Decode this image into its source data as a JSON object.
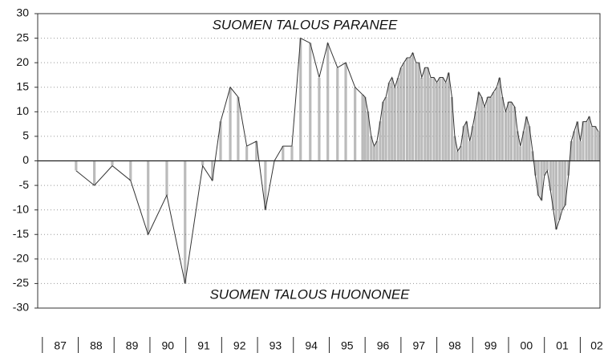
{
  "chart_data": {
    "type": "line",
    "annotations": [
      "SUOMEN TALOUS PARANEE",
      "SUOMEN TALOUS HUONONEE"
    ],
    "categories": [
      "87",
      "88",
      "89",
      "90",
      "91",
      "92",
      "93",
      "94",
      "95",
      "96",
      "97",
      "98",
      "99",
      "00",
      "01",
      "02"
    ],
    "xlim": [
      86.87,
      102.55
    ],
    "ylim": [
      -30,
      30
    ],
    "yticks": [
      30,
      25,
      20,
      15,
      10,
      5,
      0,
      -5,
      -10,
      -15,
      -20,
      -25,
      -30
    ],
    "grid": true,
    "series": [
      {
        "color": "#333333",
        "x": [
          87.94,
          88.45,
          88.95,
          89.46,
          89.95,
          90.47,
          90.98,
          91.47,
          91.74,
          91.97,
          92.24,
          92.46,
          92.7,
          92.97,
          93.22,
          93.47,
          93.71,
          93.96,
          94.2,
          94.47,
          94.72,
          94.96,
          95.23,
          95.46,
          95.72,
          95.93,
          96,
          96.08,
          96.17,
          96.25,
          96.33,
          96.42,
          96.5,
          96.58,
          96.67,
          96.75,
          96.83,
          96.92,
          97,
          97.08,
          97.17,
          97.25,
          97.33,
          97.42,
          97.5,
          97.58,
          97.67,
          97.75,
          97.83,
          97.92,
          98,
          98.08,
          98.17,
          98.25,
          98.33,
          98.42,
          98.5,
          98.58,
          98.67,
          98.75,
          98.83,
          98.92,
          99,
          99.08,
          99.17,
          99.25,
          99.33,
          99.42,
          99.5,
          99.58,
          99.67,
          99.75,
          99.83,
          99.92,
          100,
          100.08,
          100.17,
          100.25,
          100.33,
          100.42,
          100.5,
          100.58,
          100.67,
          100.75,
          100.83,
          100.92,
          101,
          101.08,
          101.17,
          101.25,
          101.33,
          101.42,
          101.5,
          101.58,
          101.67,
          101.75,
          101.83,
          101.92,
          102,
          102.08,
          102.17,
          102.25,
          102.33,
          102.42,
          102.5
        ],
        "values": [
          -2,
          -5,
          -1,
          -4,
          -15,
          -7,
          -25,
          -1,
          -4,
          8,
          15,
          13,
          3,
          4,
          -10,
          0,
          3,
          3,
          25,
          24,
          17,
          24,
          19,
          20,
          15,
          13.5,
          13,
          10,
          5,
          3,
          4,
          8,
          12,
          13,
          16,
          17,
          15,
          17,
          19,
          20,
          21,
          21,
          22,
          20,
          20,
          17,
          19,
          19,
          17,
          17,
          16,
          17,
          17,
          16,
          18,
          13,
          5,
          2,
          3,
          7,
          8,
          4,
          7,
          10,
          14,
          13,
          11,
          13,
          13,
          14,
          15,
          17,
          13,
          10,
          12,
          12,
          11,
          6,
          3,
          6,
          9,
          7,
          2,
          -3,
          -7,
          -8,
          -3,
          -2,
          -6,
          -10,
          -14,
          -12,
          -10,
          -9,
          -3,
          4,
          6,
          8,
          4,
          8,
          8,
          9,
          7,
          7,
          6
        ]
      }
    ]
  }
}
